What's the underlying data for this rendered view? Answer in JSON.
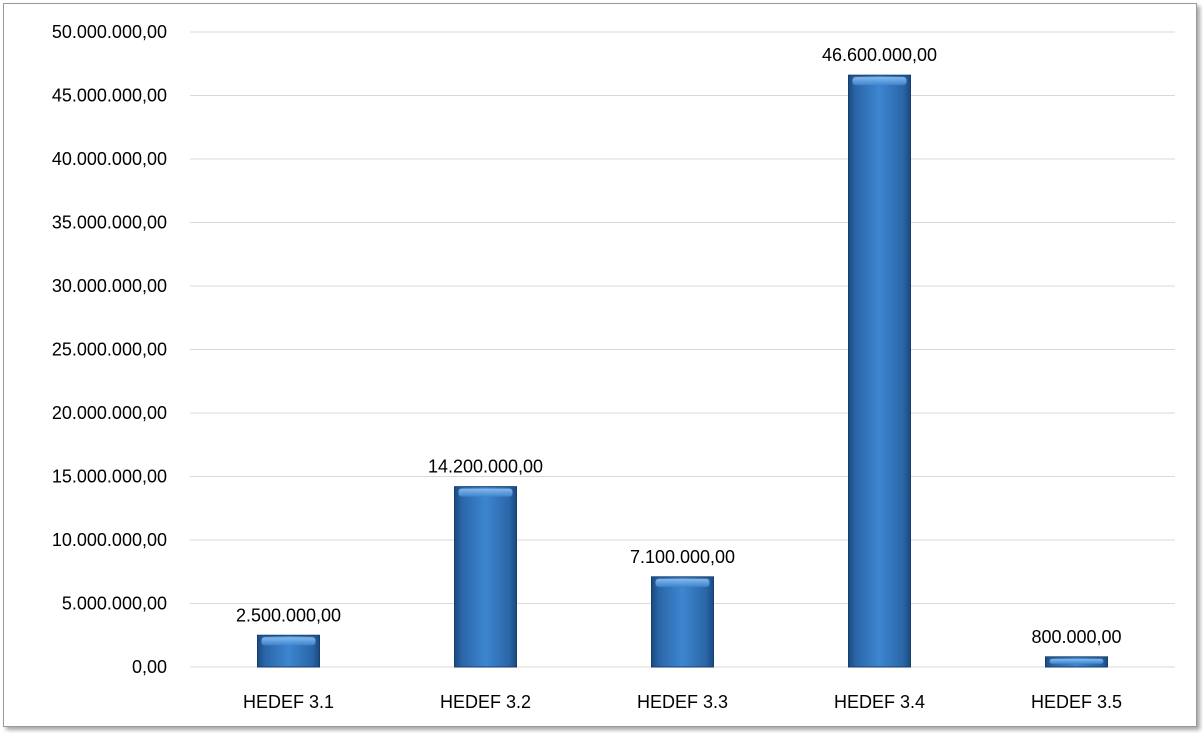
{
  "chart_data": {
    "type": "bar",
    "title": "",
    "xlabel": "",
    "ylabel": "",
    "categories": [
      "HEDEF 3.1",
      "HEDEF 3.2",
      "HEDEF 3.3",
      "HEDEF 3.4",
      "HEDEF 3.5"
    ],
    "values": [
      2500000,
      14200000,
      7100000,
      46600000,
      800000
    ],
    "data_labels": [
      "2.500.000,00",
      "14.200.000,00",
      "7.100.000,00",
      "46.600.000,00",
      "800.000,00"
    ],
    "ylim": [
      0,
      50000000
    ],
    "yticks": [
      0,
      5000000,
      10000000,
      15000000,
      20000000,
      25000000,
      30000000,
      35000000,
      40000000,
      45000000,
      50000000
    ],
    "ytick_labels": [
      "0,00",
      "5.000.000,00",
      "10.000.000,00",
      "15.000.000,00",
      "20.000.000,00",
      "25.000.000,00",
      "30.000.000,00",
      "35.000.000,00",
      "40.000.000,00",
      "45.000.000,00",
      "50.000.000,00"
    ],
    "grid": true,
    "legend": "none",
    "bar_color": "#2e6fb6",
    "grid_color": "#d9d9d9"
  }
}
